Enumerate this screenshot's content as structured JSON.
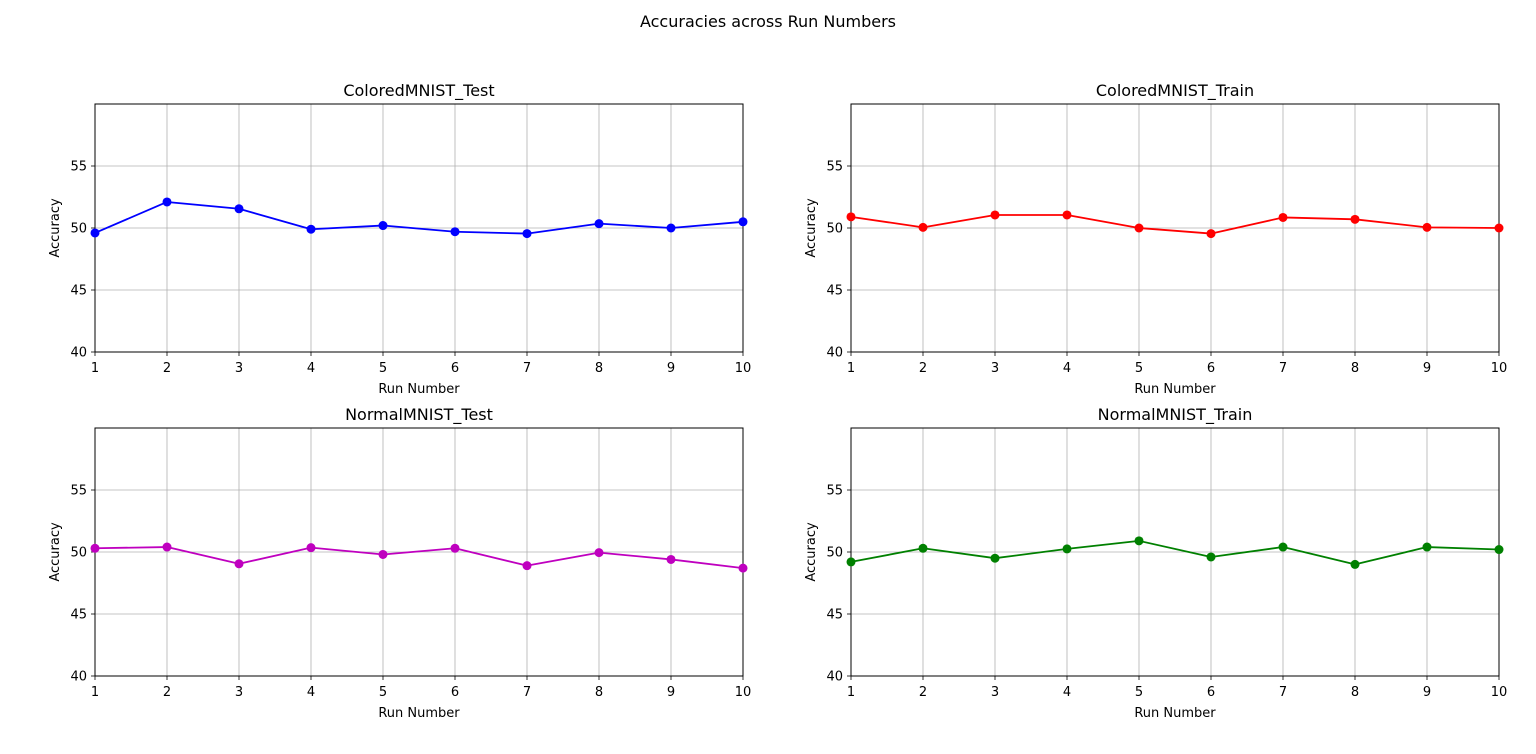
{
  "figure": {
    "title": "Accuracies across Run Numbers"
  },
  "chart_data": [
    {
      "type": "line",
      "title": "ColoredMNIST_Test",
      "xlabel": "Run Number",
      "ylabel": "Accuracy",
      "x": [
        1,
        2,
        3,
        4,
        5,
        6,
        7,
        8,
        9,
        10
      ],
      "values": [
        49.6,
        52.1,
        51.55,
        49.9,
        50.2,
        49.7,
        49.55,
        50.35,
        50.0,
        50.5
      ],
      "xlim": [
        1,
        10
      ],
      "ylim": [
        40,
        60
      ],
      "yticks": [
        40,
        45,
        50,
        55
      ],
      "grid": true,
      "color": "#0000ff",
      "marker": "circle"
    },
    {
      "type": "line",
      "title": "ColoredMNIST_Train",
      "xlabel": "Run Number",
      "ylabel": "Accuracy",
      "x": [
        1,
        2,
        3,
        4,
        5,
        6,
        7,
        8,
        9,
        10
      ],
      "values": [
        50.9,
        50.05,
        51.05,
        51.05,
        50.0,
        49.55,
        50.85,
        50.7,
        50.05,
        50.0
      ],
      "xlim": [
        1,
        10
      ],
      "ylim": [
        40,
        60
      ],
      "yticks": [
        40,
        45,
        50,
        55
      ],
      "grid": true,
      "color": "#ff0000",
      "marker": "circle"
    },
    {
      "type": "line",
      "title": "NormalMNIST_Test",
      "xlabel": "Run Number",
      "ylabel": "Accuracy",
      "x": [
        1,
        2,
        3,
        4,
        5,
        6,
        7,
        8,
        9,
        10
      ],
      "values": [
        50.3,
        50.4,
        49.05,
        50.35,
        49.8,
        50.3,
        48.9,
        49.95,
        49.4,
        48.7
      ],
      "xlim": [
        1,
        10
      ],
      "ylim": [
        40,
        60
      ],
      "yticks": [
        40,
        45,
        50,
        55
      ],
      "grid": true,
      "color": "#bf00bf",
      "marker": "circle"
    },
    {
      "type": "line",
      "title": "NormalMNIST_Train",
      "xlabel": "Run Number",
      "ylabel": "Accuracy",
      "x": [
        1,
        2,
        3,
        4,
        5,
        6,
        7,
        8,
        9,
        10
      ],
      "values": [
        49.2,
        50.3,
        49.5,
        50.25,
        50.9,
        49.6,
        50.4,
        49.0,
        50.4,
        50.2
      ],
      "xlim": [
        1,
        10
      ],
      "ylim": [
        40,
        60
      ],
      "yticks": [
        40,
        45,
        50,
        55
      ],
      "grid": true,
      "color": "#008000",
      "marker": "circle"
    }
  ]
}
